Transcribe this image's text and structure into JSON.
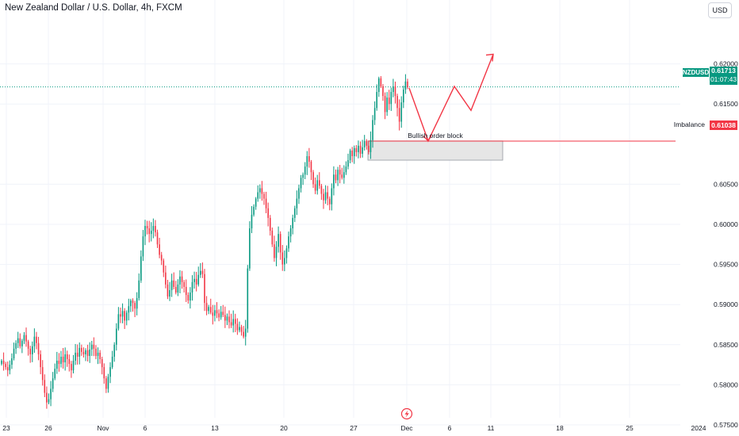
{
  "header": {
    "title": "New Zealand Dollar / U.S. Dollar, 4h, FXCM",
    "currency_button": "USD"
  },
  "colors": {
    "up": "#089981",
    "down": "#f23645",
    "annotation": "#f23645",
    "order_block_fill": "#e6e6e6",
    "grid": "#f0f3fa"
  },
  "icons": {
    "event_marker": "lightning-bolt-icon"
  },
  "chart_data": {
    "type": "candlestick",
    "symbol": "NZDUSD",
    "timeframe": "4h",
    "ylim": [
      0.5745,
      0.6215
    ],
    "y_ticks": [
      "0.62000",
      "0.61500",
      "0.61038",
      "0.60500",
      "0.60000",
      "0.59500",
      "0.59000",
      "0.58500",
      "0.58000",
      "0.57500"
    ],
    "x_ticks": [
      "23",
      "26",
      "Nov",
      "6",
      "13",
      "20",
      "27",
      "Dec",
      "6",
      "11",
      "18",
      "25",
      "2024"
    ],
    "grid": true,
    "last_price": {
      "label": "NZDUSD",
      "value": "0.61713",
      "countdown": "01:07:43"
    },
    "imbalance": {
      "label": "Imbalance",
      "value": "0.61038"
    },
    "order_block": {
      "label": "Bullish order block",
      "top": 0.6104,
      "bottom": 0.608
    },
    "projection_path": [
      {
        "x": "Dec 1",
        "y": 0.617
      },
      {
        "x": "Dec 3",
        "y": 0.6104
      },
      {
        "x": "Dec 7",
        "y": 0.6172
      },
      {
        "x": "Dec 9",
        "y": 0.6142
      },
      {
        "x": "Dec 12",
        "y": 0.6212
      }
    ],
    "closes": [
      0.583,
      0.5826,
      0.5822,
      0.5818,
      0.5825,
      0.5833,
      0.5845,
      0.5852,
      0.5858,
      0.5848,
      0.5855,
      0.5862,
      0.5854,
      0.5845,
      0.5838,
      0.5848,
      0.586,
      0.5852,
      0.5838,
      0.5822,
      0.5806,
      0.579,
      0.5778,
      0.5782,
      0.5795,
      0.5808,
      0.582,
      0.583,
      0.5826,
      0.5835,
      0.5828,
      0.5838,
      0.5832,
      0.5826,
      0.5818,
      0.583,
      0.584,
      0.5835,
      0.5846,
      0.5841,
      0.5838,
      0.5843,
      0.5836,
      0.5844,
      0.585,
      0.5845,
      0.5836,
      0.584,
      0.5832,
      0.5822,
      0.5808,
      0.5795,
      0.581,
      0.5822,
      0.5835,
      0.585,
      0.587,
      0.5888,
      0.5885,
      0.5892,
      0.588,
      0.589,
      0.5898,
      0.5905,
      0.5902,
      0.5895,
      0.5908,
      0.593,
      0.596,
      0.5985,
      0.5998,
      0.5995,
      0.5988,
      0.5992,
      0.5998,
      0.599,
      0.5975,
      0.5962,
      0.5955,
      0.594,
      0.5925,
      0.591,
      0.5918,
      0.593,
      0.5922,
      0.5915,
      0.5925,
      0.5935,
      0.5928,
      0.5922,
      0.5912,
      0.5905,
      0.5915,
      0.5928,
      0.5932,
      0.5925,
      0.5937,
      0.5942,
      0.5938,
      0.5902,
      0.5892,
      0.5897,
      0.589,
      0.5886,
      0.5893,
      0.5889,
      0.5884,
      0.5891,
      0.5887,
      0.588,
      0.5885,
      0.5878,
      0.5874,
      0.5882,
      0.5876,
      0.5868,
      0.5872,
      0.5866,
      0.586,
      0.587,
      0.5945,
      0.5995,
      0.6012,
      0.6022,
      0.6032,
      0.604,
      0.6045,
      0.6038,
      0.6032,
      0.602,
      0.6008,
      0.5992,
      0.5975,
      0.5958,
      0.5972,
      0.5988,
      0.5965,
      0.595,
      0.5958,
      0.597,
      0.5985,
      0.5995,
      0.6008,
      0.602,
      0.6032,
      0.6045,
      0.6058,
      0.6062,
      0.6072,
      0.6085,
      0.6078,
      0.6065,
      0.605,
      0.6042,
      0.6055,
      0.6048,
      0.6038,
      0.603,
      0.604,
      0.6032,
      0.6025,
      0.6045,
      0.6062,
      0.6055,
      0.6068,
      0.6062,
      0.6058,
      0.6065,
      0.6072,
      0.608,
      0.6092,
      0.6085,
      0.6095,
      0.609,
      0.6098,
      0.6088,
      0.6096,
      0.6104,
      0.6098,
      0.609,
      0.6105,
      0.613,
      0.6145,
      0.6165,
      0.6182,
      0.6172,
      0.616,
      0.614,
      0.6158,
      0.615,
      0.6165,
      0.6172,
      0.616,
      0.6145,
      0.6128,
      0.6152,
      0.6168,
      0.6178,
      0.6171
    ]
  }
}
